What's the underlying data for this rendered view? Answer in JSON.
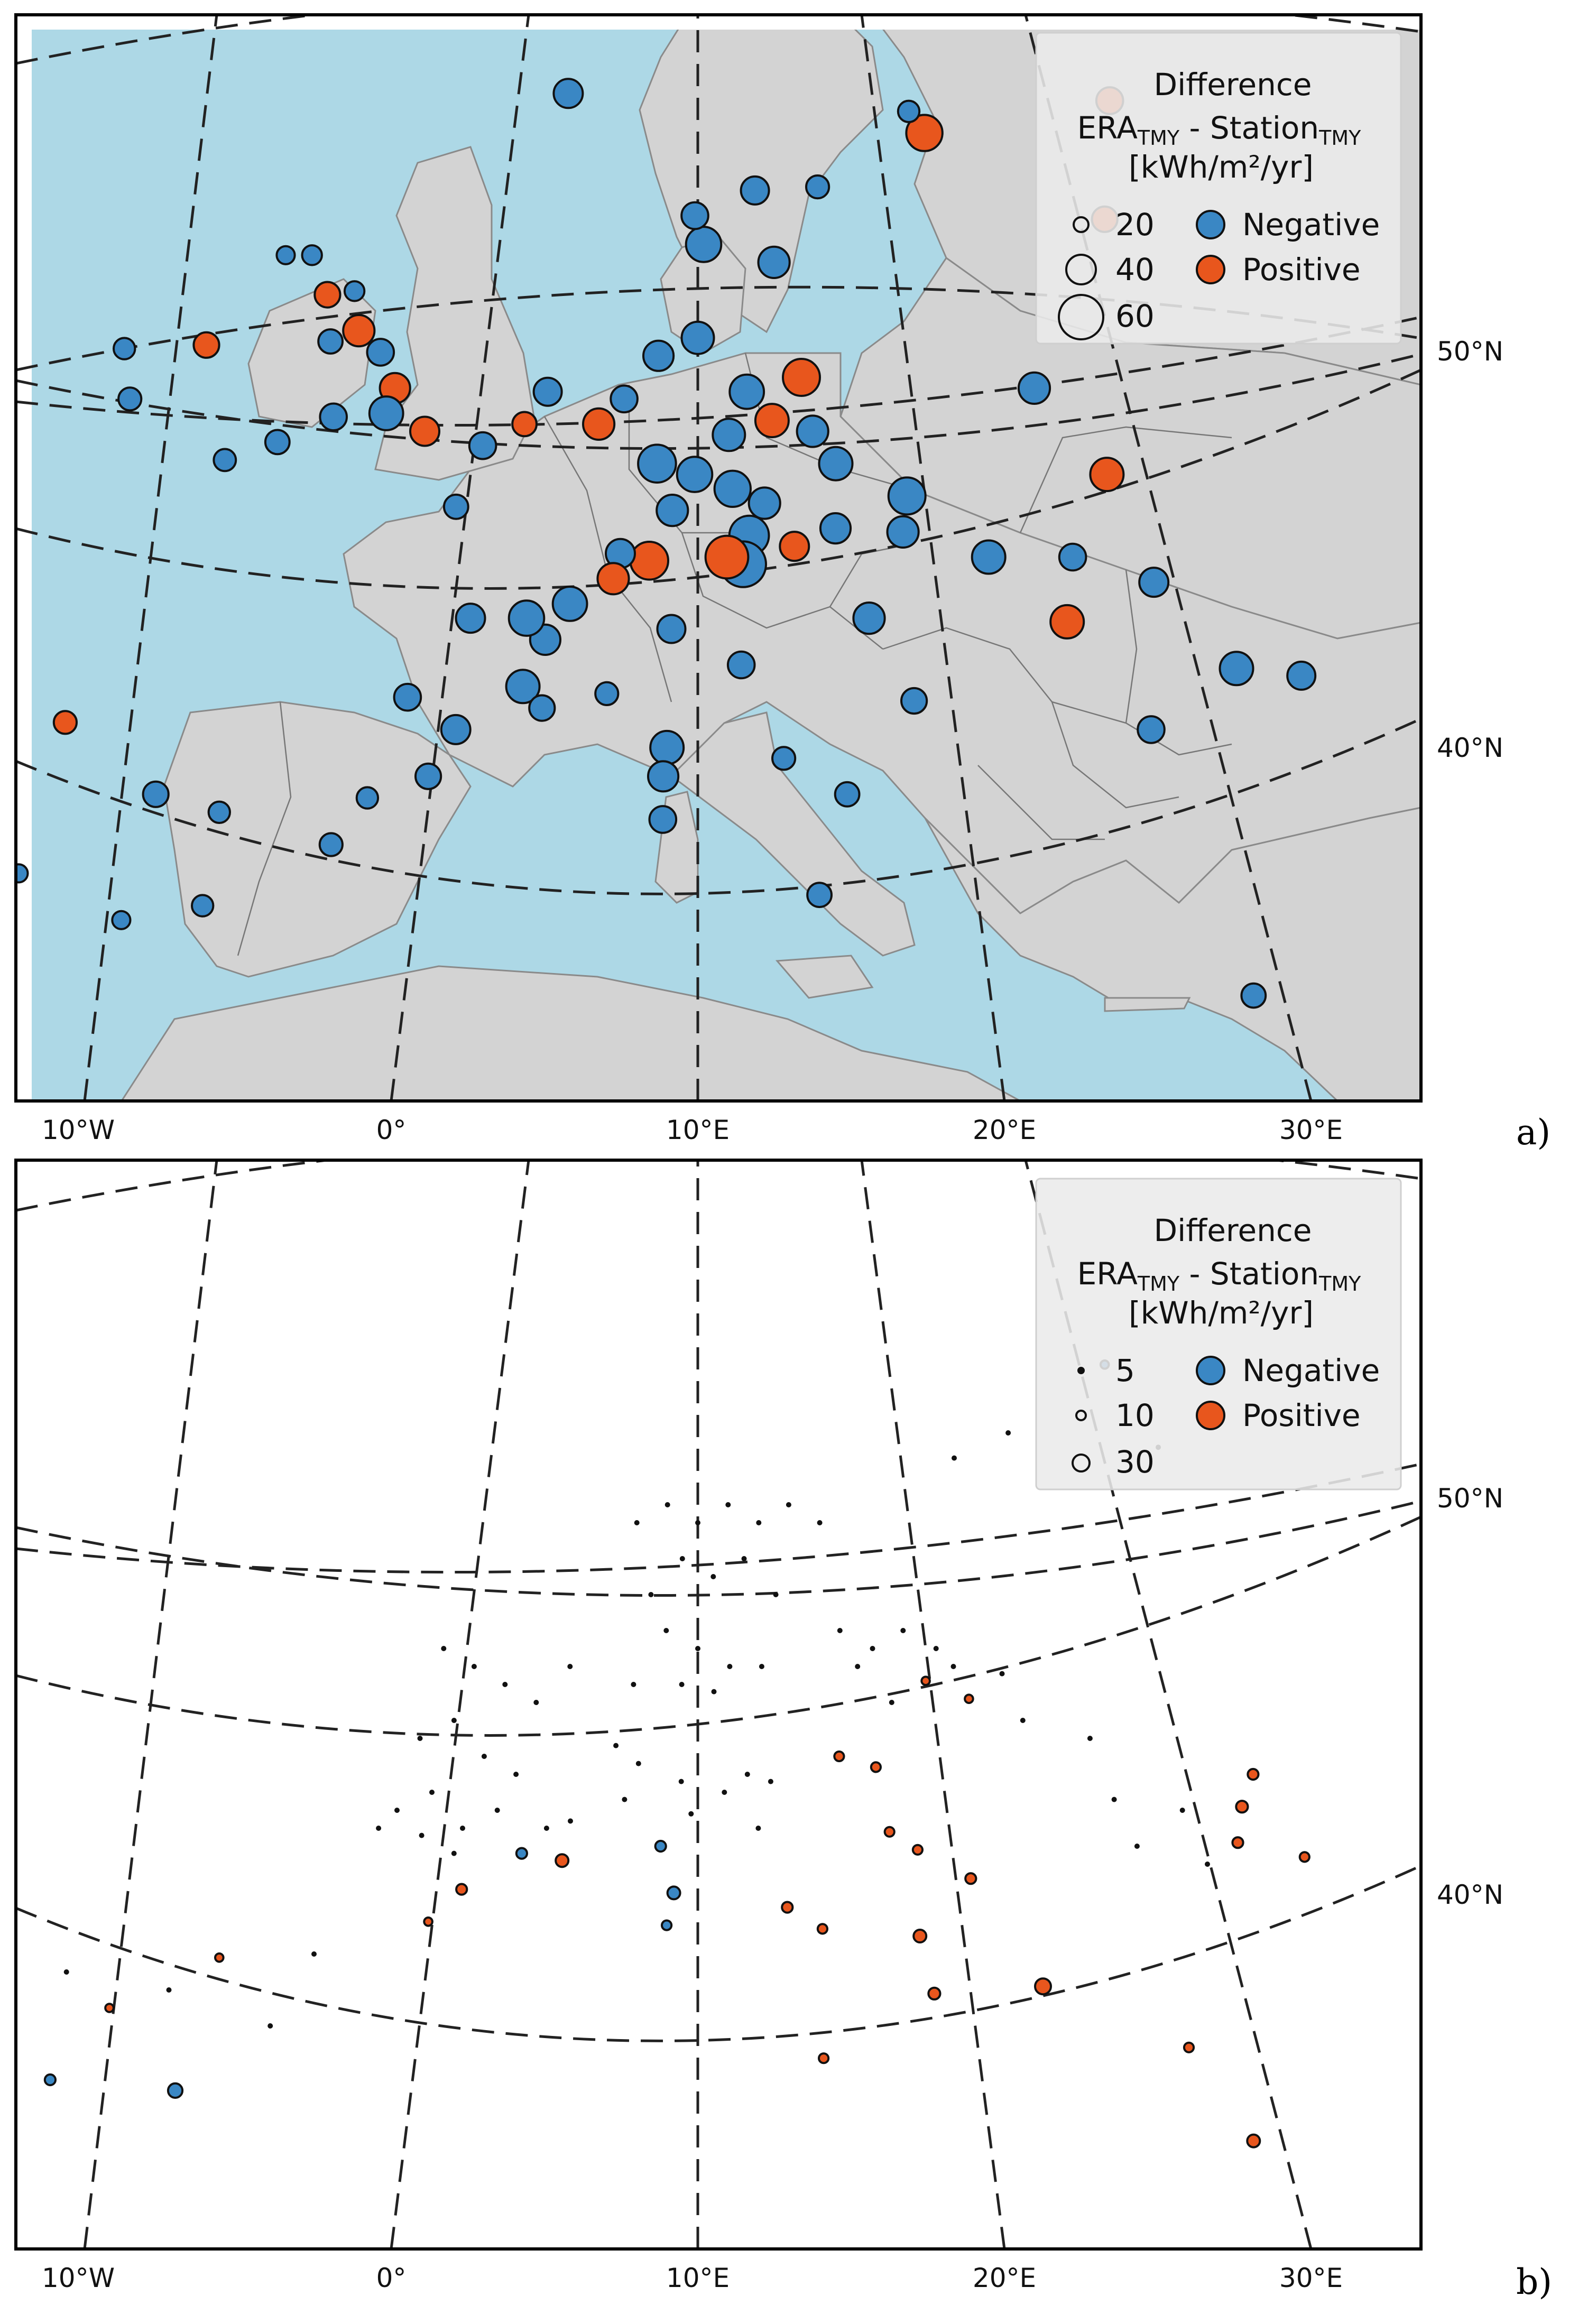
{
  "colors": {
    "negative": "#3a87c4",
    "positive": "#e8561d",
    "sea": "#add8e6",
    "land": "#d3d3d3"
  },
  "axes": {
    "lon_labels": [
      "10°W",
      "0°",
      "10°E",
      "20°E",
      "30°E"
    ],
    "lat_labels": [
      "50°N",
      "40°N"
    ]
  },
  "panels": [
    {
      "label": "a)",
      "legend": {
        "title": "Difference",
        "subtitle_a": "ERA",
        "subtitle_a_sub": "TMY",
        "subtitle_mid": " - Station",
        "subtitle_b_sub": "TMY",
        "unit": "[kWh/m²/yr]",
        "sizes": [
          "20",
          "40",
          "60"
        ],
        "signs": [
          "Negative",
          "Positive"
        ]
      },
      "stations": [
        {
          "lon": -4.1,
          "lat": 55.9,
          "v": 10,
          "s": "neg"
        },
        {
          "lon": -3.2,
          "lat": 55.9,
          "v": 12,
          "s": "neg"
        },
        {
          "lon": -2.5,
          "lat": 54.8,
          "v": 20,
          "s": "pos"
        },
        {
          "lon": -1.6,
          "lat": 54.9,
          "v": 12,
          "s": "neg"
        },
        {
          "lon": -1.3,
          "lat": 53.8,
          "v": 30,
          "s": "pos"
        },
        {
          "lon": -0.5,
          "lat": 53.2,
          "v": 22,
          "s": "neg"
        },
        {
          "lon": -2.2,
          "lat": 53.5,
          "v": 18,
          "s": "neg"
        },
        {
          "lon": 0.1,
          "lat": 52.2,
          "v": 28,
          "s": "pos"
        },
        {
          "lon": -0.1,
          "lat": 51.5,
          "v": 35,
          "s": "neg"
        },
        {
          "lon": 1.2,
          "lat": 51.0,
          "v": 26,
          "s": "pos"
        },
        {
          "lon": -1.8,
          "lat": 51.4,
          "v": 22,
          "s": "neg"
        },
        {
          "lon": -3.5,
          "lat": 50.7,
          "v": 18,
          "s": "neg"
        },
        {
          "lon": -5.1,
          "lat": 50.2,
          "v": 15,
          "s": "neg"
        },
        {
          "lon": -6.3,
          "lat": 53.4,
          "v": 20,
          "s": "pos"
        },
        {
          "lon": -8.5,
          "lat": 51.9,
          "v": 16,
          "s": "neg"
        },
        {
          "lon": -9.0,
          "lat": 53.3,
          "v": 14,
          "s": "neg"
        },
        {
          "lon": 2.4,
          "lat": 48.9,
          "v": 18,
          "s": "neg"
        },
        {
          "lon": 3.1,
          "lat": 50.6,
          "v": 22,
          "s": "neg"
        },
        {
          "lon": 4.4,
          "lat": 51.2,
          "v": 18,
          "s": "pos"
        },
        {
          "lon": 5.1,
          "lat": 52.1,
          "v": 24,
          "s": "neg"
        },
        {
          "lon": 6.8,
          "lat": 51.2,
          "v": 30,
          "s": "pos"
        },
        {
          "lon": 7.6,
          "lat": 51.9,
          "v": 22,
          "s": "neg"
        },
        {
          "lon": 8.7,
          "lat": 53.1,
          "v": 28,
          "s": "neg"
        },
        {
          "lon": 10.0,
          "lat": 53.6,
          "v": 32,
          "s": "neg"
        },
        {
          "lon": 11.6,
          "lat": 52.1,
          "v": 36,
          "s": "neg"
        },
        {
          "lon": 13.4,
          "lat": 52.5,
          "v": 42,
          "s": "pos"
        },
        {
          "lon": 12.4,
          "lat": 51.3,
          "v": 34,
          "s": "pos"
        },
        {
          "lon": 13.7,
          "lat": 51.0,
          "v": 30,
          "s": "neg"
        },
        {
          "lon": 11.0,
          "lat": 50.9,
          "v": 32,
          "s": "neg"
        },
        {
          "lon": 8.7,
          "lat": 50.1,
          "v": 44,
          "s": "neg"
        },
        {
          "lon": 9.9,
          "lat": 49.8,
          "v": 38,
          "s": "neg"
        },
        {
          "lon": 11.1,
          "lat": 49.4,
          "v": 40,
          "s": "neg"
        },
        {
          "lon": 12.1,
          "lat": 49.0,
          "v": 30,
          "s": "neg"
        },
        {
          "lon": 14.4,
          "lat": 50.1,
          "v": 34,
          "s": "neg"
        },
        {
          "lon": 16.6,
          "lat": 49.2,
          "v": 42,
          "s": "neg"
        },
        {
          "lon": 16.4,
          "lat": 48.2,
          "v": 30,
          "s": "neg"
        },
        {
          "lon": 14.3,
          "lat": 48.3,
          "v": 28,
          "s": "neg"
        },
        {
          "lon": 13.0,
          "lat": 47.8,
          "v": 26,
          "s": "pos"
        },
        {
          "lon": 11.6,
          "lat": 48.1,
          "v": 48,
          "s": "neg"
        },
        {
          "lon": 11.4,
          "lat": 47.3,
          "v": 64,
          "s": "neg"
        },
        {
          "lon": 10.9,
          "lat": 47.5,
          "v": 56,
          "s": "pos"
        },
        {
          "lon": 9.2,
          "lat": 48.8,
          "v": 30,
          "s": "neg"
        },
        {
          "lon": 8.5,
          "lat": 47.4,
          "v": 44,
          "s": "pos"
        },
        {
          "lon": 7.6,
          "lat": 47.6,
          "v": 26,
          "s": "neg"
        },
        {
          "lon": 7.4,
          "lat": 46.9,
          "v": 30,
          "s": "pos"
        },
        {
          "lon": 6.1,
          "lat": 46.2,
          "v": 36,
          "s": "neg"
        },
        {
          "lon": 5.4,
          "lat": 45.2,
          "v": 28,
          "s": "neg"
        },
        {
          "lon": 4.8,
          "lat": 45.8,
          "v": 38,
          "s": "neg"
        },
        {
          "lon": 3.1,
          "lat": 45.8,
          "v": 26,
          "s": "neg"
        },
        {
          "lon": 1.4,
          "lat": 43.6,
          "v": 22,
          "s": "neg"
        },
        {
          "lon": 2.9,
          "lat": 42.7,
          "v": 26,
          "s": "neg"
        },
        {
          "lon": 4.8,
          "lat": 43.9,
          "v": 34,
          "s": "neg"
        },
        {
          "lon": 5.4,
          "lat": 43.3,
          "v": 20,
          "s": "neg"
        },
        {
          "lon": 7.3,
          "lat": 43.7,
          "v": 16,
          "s": "neg"
        },
        {
          "lon": 9.1,
          "lat": 42.2,
          "v": 34,
          "s": "neg"
        },
        {
          "lon": 9.0,
          "lat": 41.4,
          "v": 28,
          "s": "neg"
        },
        {
          "lon": 9.0,
          "lat": 40.2,
          "v": 22,
          "s": "neg"
        },
        {
          "lon": 9.2,
          "lat": 45.5,
          "v": 24,
          "s": "neg"
        },
        {
          "lon": 11.3,
          "lat": 44.5,
          "v": 22,
          "s": "neg"
        },
        {
          "lon": 12.5,
          "lat": 41.9,
          "v": 16,
          "s": "neg"
        },
        {
          "lon": 14.3,
          "lat": 40.9,
          "v": 18,
          "s": "neg"
        },
        {
          "lon": 13.4,
          "lat": 38.1,
          "v": 18,
          "s": "neg"
        },
        {
          "lon": 16.4,
          "lat": 43.5,
          "v": 20,
          "s": "neg"
        },
        {
          "lon": 15.2,
          "lat": 45.8,
          "v": 30,
          "s": "neg"
        },
        {
          "lon": 19.0,
          "lat": 47.5,
          "v": 34,
          "s": "neg"
        },
        {
          "lon": 21.6,
          "lat": 47.5,
          "v": 22,
          "s": "neg"
        },
        {
          "lon": 21.0,
          "lat": 52.2,
          "v": 30,
          "s": "neg"
        },
        {
          "lon": 23.0,
          "lat": 49.8,
          "v": 34,
          "s": "pos"
        },
        {
          "lon": 24.0,
          "lat": 46.8,
          "v": 26,
          "s": "neg"
        },
        {
          "lon": 21.2,
          "lat": 45.7,
          "v": 34,
          "s": "pos"
        },
        {
          "lon": 26.1,
          "lat": 44.4,
          "v": 34,
          "s": "neg"
        },
        {
          "lon": 28.0,
          "lat": 44.2,
          "v": 24,
          "s": "neg"
        },
        {
          "lon": 23.3,
          "lat": 42.7,
          "v": 22,
          "s": "neg"
        },
        {
          "lon": 25.1,
          "lat": 35.3,
          "v": 18,
          "s": "neg"
        },
        {
          "lon": 18.1,
          "lat": 59.3,
          "v": 40,
          "s": "pos"
        },
        {
          "lon": 17.6,
          "lat": 59.9,
          "v": 14,
          "s": "neg"
        },
        {
          "lon": 24.9,
          "lat": 60.2,
          "v": 22,
          "s": "pos"
        },
        {
          "lon": 24.1,
          "lat": 56.9,
          "v": 20,
          "s": "pos"
        },
        {
          "lon": 12.6,
          "lat": 55.7,
          "v": 30,
          "s": "neg"
        },
        {
          "lon": 10.2,
          "lat": 56.2,
          "v": 38,
          "s": "neg"
        },
        {
          "lon": 9.9,
          "lat": 57.0,
          "v": 22,
          "s": "neg"
        },
        {
          "lon": 12.0,
          "lat": 57.7,
          "v": 24,
          "s": "neg"
        },
        {
          "lon": 14.2,
          "lat": 57.8,
          "v": 16,
          "s": "neg"
        },
        {
          "lon": 5.3,
          "lat": 60.4,
          "v": 26,
          "s": "neg"
        },
        {
          "lon": -3.8,
          "lat": 37.8,
          "v": 14,
          "s": "neg"
        },
        {
          "lon": -8.6,
          "lat": 42.9,
          "v": 16,
          "s": "pos"
        },
        {
          "lon": -5.6,
          "lat": 40.9,
          "v": 20,
          "s": "neg"
        },
        {
          "lon": -3.7,
          "lat": 40.4,
          "v": 14,
          "s": "neg"
        },
        {
          "lon": -0.4,
          "lat": 39.5,
          "v": 16,
          "s": "neg"
        },
        {
          "lon": 2.2,
          "lat": 41.4,
          "v": 20,
          "s": "neg"
        },
        {
          "lon": -9.1,
          "lat": 38.7,
          "v": 10,
          "s": "neg"
        },
        {
          "lon": -6.0,
          "lat": 37.4,
          "v": 10,
          "s": "neg"
        },
        {
          "lon": 0.5,
          "lat": 40.8,
          "v": 14,
          "s": "neg"
        }
      ]
    },
    {
      "label": "b)",
      "legend": {
        "title": "Difference",
        "subtitle_a": "ERA",
        "subtitle_a_sub": "TMY",
        "subtitle_mid": " - Station",
        "subtitle_b_sub": "TMY",
        "unit": "[kWh/m²/yr]",
        "sizes": [
          "5",
          "10",
          "30"
        ],
        "signs": [
          "Negative",
          "Positive"
        ]
      },
      "stations": [
        {
          "lon": 4.8,
          "lat": 43.3,
          "v": 10,
          "s": "neg"
        },
        {
          "lon": 6.0,
          "lat": 43.1,
          "v": 14,
          "s": "pos"
        },
        {
          "lon": 3.1,
          "lat": 42.3,
          "v": 10,
          "s": "pos"
        },
        {
          "lon": 2.2,
          "lat": 41.4,
          "v": 6,
          "s": "pos"
        },
        {
          "lon": 8.9,
          "lat": 43.5,
          "v": 10,
          "s": "neg"
        },
        {
          "lon": 9.3,
          "lat": 42.2,
          "v": 14,
          "s": "neg"
        },
        {
          "lon": 9.1,
          "lat": 41.3,
          "v": 8,
          "s": "neg"
        },
        {
          "lon": 12.6,
          "lat": 41.8,
          "v": 10,
          "s": "pos"
        },
        {
          "lon": 13.6,
          "lat": 41.2,
          "v": 8,
          "s": "pos"
        },
        {
          "lon": 16.4,
          "lat": 41.0,
          "v": 14,
          "s": "pos"
        },
        {
          "lon": 16.7,
          "lat": 39.4,
          "v": 12,
          "s": "pos"
        },
        {
          "lon": 19.8,
          "lat": 39.6,
          "v": 22,
          "s": "pos"
        },
        {
          "lon": 15.7,
          "lat": 43.9,
          "v": 8,
          "s": "pos"
        },
        {
          "lon": 16.5,
          "lat": 43.4,
          "v": 8,
          "s": "pos"
        },
        {
          "lon": 18.0,
          "lat": 42.6,
          "v": 10,
          "s": "pos"
        },
        {
          "lon": 26.3,
          "lat": 44.6,
          "v": 12,
          "s": "pos"
        },
        {
          "lon": 26.8,
          "lat": 45.5,
          "v": 10,
          "s": "pos"
        },
        {
          "lon": 26.0,
          "lat": 43.6,
          "v": 10,
          "s": "pos"
        },
        {
          "lon": 27.9,
          "lat": 43.2,
          "v": 8,
          "s": "pos"
        },
        {
          "lon": 25.1,
          "lat": 35.3,
          "v": 14,
          "s": "pos"
        },
        {
          "lon": 23.7,
          "lat": 37.9,
          "v": 8,
          "s": "pos"
        },
        {
          "lon": 32.9,
          "lat": 34.9,
          "v": 14,
          "s": "pos"
        },
        {
          "lon": -4.4,
          "lat": 36.7,
          "v": 18,
          "s": "neg"
        },
        {
          "lon": -7.9,
          "lat": 37.0,
          "v": 10,
          "s": "neg"
        },
        {
          "lon": -3.7,
          "lat": 40.4,
          "v": 6,
          "s": "pos"
        },
        {
          "lon": -6.6,
          "lat": 39.0,
          "v": 6,
          "s": "pos"
        },
        {
          "lon": 14.3,
          "lat": 46.0,
          "v": 8,
          "s": "pos"
        },
        {
          "lon": 15.4,
          "lat": 45.7,
          "v": 8,
          "s": "pos"
        },
        {
          "lon": 18.4,
          "lat": 47.6,
          "v": 6,
          "s": "pos"
        },
        {
          "lon": 17.1,
          "lat": 48.1,
          "v": 6,
          "s": "pos"
        },
        {
          "lon": 13.5,
          "lat": 37.6,
          "v": 8,
          "s": "pos"
        },
        {
          "lon": 24.1,
          "lat": 56.9,
          "v": 6,
          "s": "neg"
        }
      ],
      "small_dots": [
        [
          2.0,
          49.0
        ],
        [
          3.0,
          48.5
        ],
        [
          4.0,
          48.0
        ],
        [
          5.0,
          47.5
        ],
        [
          6.0,
          48.5
        ],
        [
          2.5,
          47.0
        ],
        [
          1.5,
          46.5
        ],
        [
          3.5,
          46.0
        ],
        [
          4.5,
          45.5
        ],
        [
          2.0,
          45.0
        ],
        [
          1.0,
          44.5
        ],
        [
          3.0,
          44.0
        ],
        [
          4.0,
          44.5
        ],
        [
          5.5,
          44.0
        ],
        [
          0.5,
          44.0
        ],
        [
          1.8,
          43.8
        ],
        [
          2.8,
          43.3
        ],
        [
          6.2,
          44.2
        ],
        [
          8.0,
          52.5
        ],
        [
          9.0,
          53.0
        ],
        [
          10.0,
          52.5
        ],
        [
          11.0,
          53.0
        ],
        [
          12.0,
          52.5
        ],
        [
          13.0,
          53.0
        ],
        [
          14.0,
          52.5
        ],
        [
          9.5,
          51.5
        ],
        [
          10.5,
          51.0
        ],
        [
          11.5,
          51.5
        ],
        [
          12.5,
          50.5
        ],
        [
          8.5,
          50.5
        ],
        [
          9.0,
          49.5
        ],
        [
          10.0,
          49.0
        ],
        [
          11.0,
          48.5
        ],
        [
          12.0,
          48.5
        ],
        [
          8.0,
          48.0
        ],
        [
          9.5,
          48.0
        ],
        [
          10.5,
          47.8
        ],
        [
          14.5,
          49.5
        ],
        [
          15.5,
          49.0
        ],
        [
          16.5,
          49.5
        ],
        [
          17.5,
          49.0
        ],
        [
          15.0,
          48.5
        ],
        [
          18.0,
          48.5
        ],
        [
          19.5,
          48.3
        ],
        [
          16.0,
          47.5
        ],
        [
          20.0,
          47.0
        ],
        [
          22.0,
          46.5
        ],
        [
          7.5,
          46.3
        ],
        [
          8.2,
          45.8
        ],
        [
          9.5,
          45.3
        ],
        [
          10.8,
          45.0
        ],
        [
          11.5,
          45.5
        ],
        [
          12.2,
          45.3
        ],
        [
          7.8,
          44.8
        ],
        [
          9.8,
          44.4
        ],
        [
          11.8,
          44.0
        ],
        [
          22.5,
          44.8
        ],
        [
          24.5,
          44.5
        ],
        [
          23.0,
          43.5
        ],
        [
          25.0,
          43.0
        ],
        [
          -1.0,
          40.5
        ],
        [
          -5.0,
          39.5
        ],
        [
          -2.0,
          38.5
        ],
        [
          -8.0,
          40.0
        ],
        [
          20.5,
          55.0
        ],
        [
          25.5,
          54.6
        ],
        [
          18.6,
          54.3
        ]
      ]
    }
  ]
}
